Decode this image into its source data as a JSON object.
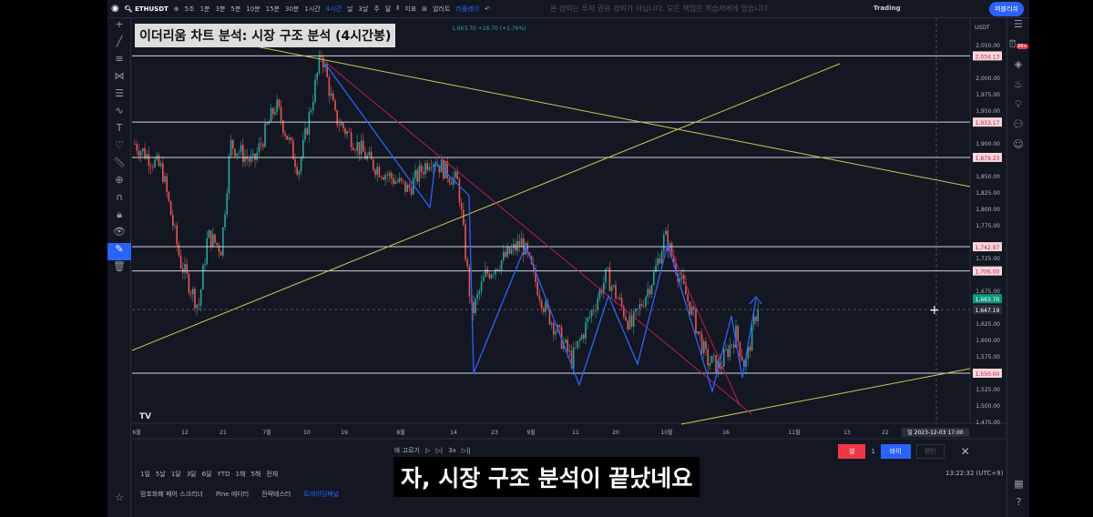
{
  "toolbar": {
    "symbol": "ETHUSDT",
    "intervals": [
      "5조",
      "1분",
      "3분",
      "5분",
      "10분",
      "15분",
      "30분",
      "1시간",
      "4시간",
      "날",
      "3날",
      "주",
      "달"
    ],
    "active_interval": "4시간",
    "indicators": "지표",
    "alert": "얼러트",
    "replay": "리플레이",
    "notice": "본 강의는 투자 권유 강의가 아닙니다. 모든 책임은 학습자에게 있습니다",
    "trading": "Trading",
    "publish": "퍼블리쉬"
  },
  "title": "이더리움 차트 분석: 시장 구조 분석 (4시간봉)",
  "legend": "1,663.70 +28.70 (+1.76%)",
  "currency": "USDT",
  "price_axis": [
    "2,050.00",
    "2,000.00",
    "1,975.00",
    "1,950.00",
    "1,900.00",
    "1,850.00",
    "1,825.00",
    "1,800.00",
    "1,775.00",
    "1,725.00",
    "1,675.00",
    "1,625.00",
    "1,600.00",
    "1,575.00",
    "1,525.00",
    "1,500.00",
    "1,475.00"
  ],
  "levels": [
    "2,034.13",
    "1,933.17",
    "1,879.23",
    "1,742.97",
    "1,706.00",
    "1,550.00"
  ],
  "current_price": "1,663.70",
  "crosshair_price": "1,647.19",
  "time_axis": [
    "6월",
    "12",
    "21",
    "7월",
    "10",
    "19",
    "8월",
    "14",
    "23",
    "9월",
    "11",
    "20",
    "10월",
    "16",
    "11월",
    "13",
    "22"
  ],
  "crosshair_time": "일 2023-12-03  17:00",
  "replay_bar": {
    "select": "바 고르기",
    "speed": "3x",
    "sell": "셀",
    "qty": "1",
    "buy": "바이",
    "flat": "평탄"
  },
  "ranges": [
    "1일",
    "5날",
    "1달",
    "3달",
    "6달",
    "YTD",
    "1해",
    "5해",
    "전체"
  ],
  "clock": "13:22:32 (UTC+9)",
  "panels": [
    "암호화폐 페어 스크리너",
    "Pine 에디터",
    "전략테스터",
    "트레이딩패널"
  ],
  "subtitle": "자, 시장 구조 분석이 끝났네요",
  "notification_badge": "99+",
  "colors": {
    "bg": "#131722",
    "level": "#d1d4dc",
    "zigzag": "#2962ff",
    "trend_red": "#c2185b",
    "trend_yellow": "#c8c850",
    "up": "#26a69a",
    "down": "#ef5350"
  }
}
